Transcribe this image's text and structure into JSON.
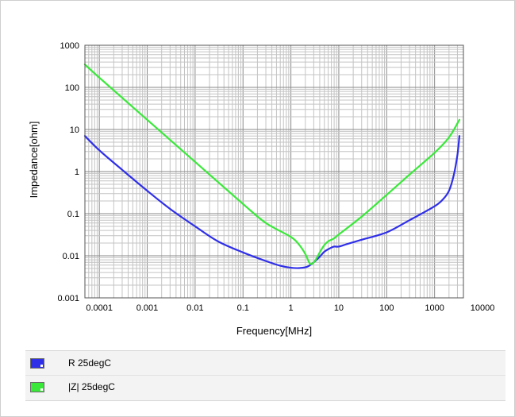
{
  "chart_data": {
    "type": "line",
    "xlabel": "Frequency[MHz]",
    "ylabel": "Impedance[ohm]",
    "xscale": "log",
    "yscale": "log",
    "xlim": [
      5e-05,
      4000
    ],
    "ylim": [
      0.001,
      1000
    ],
    "xticks": [
      {
        "value": 0.0001,
        "label": "0.0001"
      },
      {
        "value": 0.001,
        "label": "0.001"
      },
      {
        "value": 0.01,
        "label": "0.01"
      },
      {
        "value": 0.1,
        "label": "0.1"
      },
      {
        "value": 1,
        "label": "1"
      },
      {
        "value": 10,
        "label": "10"
      },
      {
        "value": 100,
        "label": "100"
      },
      {
        "value": 1000,
        "label": "1000"
      },
      {
        "value": 10000,
        "label": "10000"
      }
    ],
    "yticks": [
      {
        "value": 0.001,
        "label": "0.001"
      },
      {
        "value": 0.01,
        "label": "0.01"
      },
      {
        "value": 0.1,
        "label": "0.1"
      },
      {
        "value": 1,
        "label": "1"
      },
      {
        "value": 10,
        "label": "10"
      },
      {
        "value": 100,
        "label": "100"
      },
      {
        "value": 1000,
        "label": "1000"
      }
    ],
    "grid": true,
    "legend_position": "bottom",
    "series": [
      {
        "name": "R 25degC",
        "color": "#2f2fe8",
        "points": [
          [
            5e-05,
            7
          ],
          [
            0.0001,
            3.2
          ],
          [
            0.0003,
            1.1
          ],
          [
            0.001,
            0.35
          ],
          [
            0.003,
            0.13
          ],
          [
            0.01,
            0.05
          ],
          [
            0.03,
            0.022
          ],
          [
            0.1,
            0.012
          ],
          [
            0.3,
            0.0075
          ],
          [
            0.6,
            0.0058
          ],
          [
            1,
            0.0052
          ],
          [
            1.5,
            0.0051
          ],
          [
            2.2,
            0.0055
          ],
          [
            3,
            0.007
          ],
          [
            4,
            0.0095
          ],
          [
            5,
            0.0125
          ],
          [
            6.5,
            0.015
          ],
          [
            8,
            0.0165
          ],
          [
            10,
            0.0165
          ],
          [
            15,
            0.019
          ],
          [
            30,
            0.024
          ],
          [
            100,
            0.036
          ],
          [
            300,
            0.07
          ],
          [
            1000,
            0.15
          ],
          [
            1500,
            0.22
          ],
          [
            2000,
            0.35
          ],
          [
            2500,
            0.8
          ],
          [
            3000,
            2.5
          ],
          [
            3300,
            7
          ]
        ]
      },
      {
        "name": "|Z| 25degC",
        "color": "#3ae83a",
        "points": [
          [
            5e-05,
            350
          ],
          [
            0.0001,
            170
          ],
          [
            0.001,
            17
          ],
          [
            0.01,
            1.7
          ],
          [
            0.1,
            0.17
          ],
          [
            0.3,
            0.06
          ],
          [
            1,
            0.028
          ],
          [
            1.5,
            0.018
          ],
          [
            2,
            0.011
          ],
          [
            2.5,
            0.0065
          ],
          [
            3,
            0.007
          ],
          [
            3.5,
            0.009
          ],
          [
            4,
            0.012
          ],
          [
            5,
            0.018
          ],
          [
            6,
            0.022
          ],
          [
            7,
            0.024
          ],
          [
            8,
            0.026
          ],
          [
            10,
            0.032
          ],
          [
            30,
            0.085
          ],
          [
            100,
            0.28
          ],
          [
            300,
            0.85
          ],
          [
            1000,
            2.8
          ],
          [
            2000,
            6.5
          ],
          [
            3300,
            17
          ]
        ]
      }
    ]
  }
}
